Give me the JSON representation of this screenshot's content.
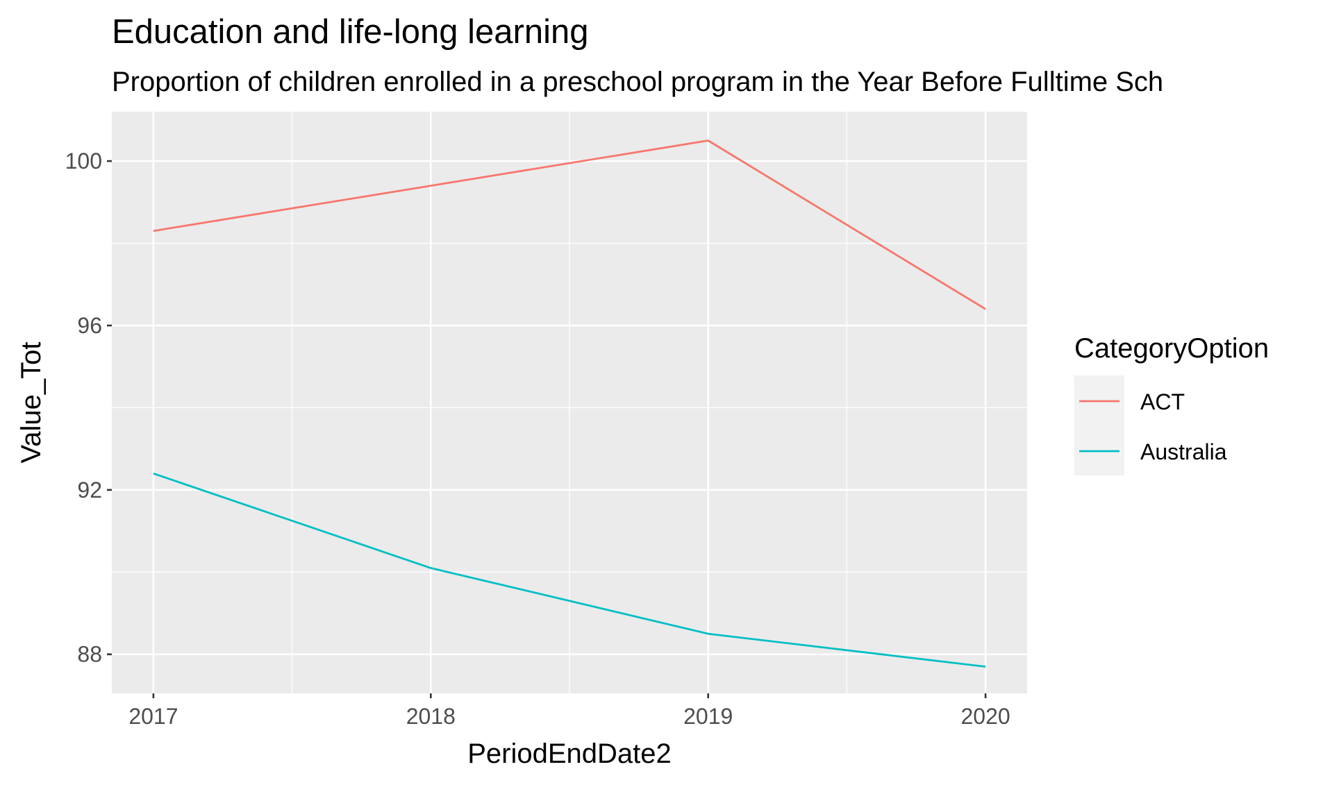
{
  "chart_data": {
    "type": "line",
    "title": "Education and life-long learning",
    "subtitle": "Proportion of children  enrolled in a preschool program in the Year Before Fulltime Sch",
    "xlabel": "PeriodEndDate2",
    "ylabel": "Value_Tot",
    "x": [
      2017,
      2018,
      2019,
      2020
    ],
    "x_tick_labels": [
      "2017",
      "2018",
      "2019",
      "2020"
    ],
    "y_ticks": [
      88,
      92,
      96,
      100
    ],
    "y_tick_labels": [
      "88",
      "92",
      "96",
      "100"
    ],
    "xlim": [
      2016.85,
      2020.15
    ],
    "ylim": [
      87.05,
      101.2
    ],
    "grid": true,
    "legend": {
      "title": "CategoryOption",
      "position": "right"
    },
    "series": [
      {
        "name": "ACT",
        "color": "#F8766D",
        "values": [
          98.3,
          99.4,
          100.5,
          96.4
        ]
      },
      {
        "name": "Australia",
        "color": "#00BFC4",
        "values": [
          92.4,
          90.1,
          88.5,
          87.7
        ]
      }
    ],
    "colors": {
      "panel_background": "#EBEBEB",
      "grid_line": "#FFFFFF",
      "text": "#000000",
      "tick_text": "#4D4D4D",
      "legend_key_background": "#F2F2F2"
    }
  }
}
